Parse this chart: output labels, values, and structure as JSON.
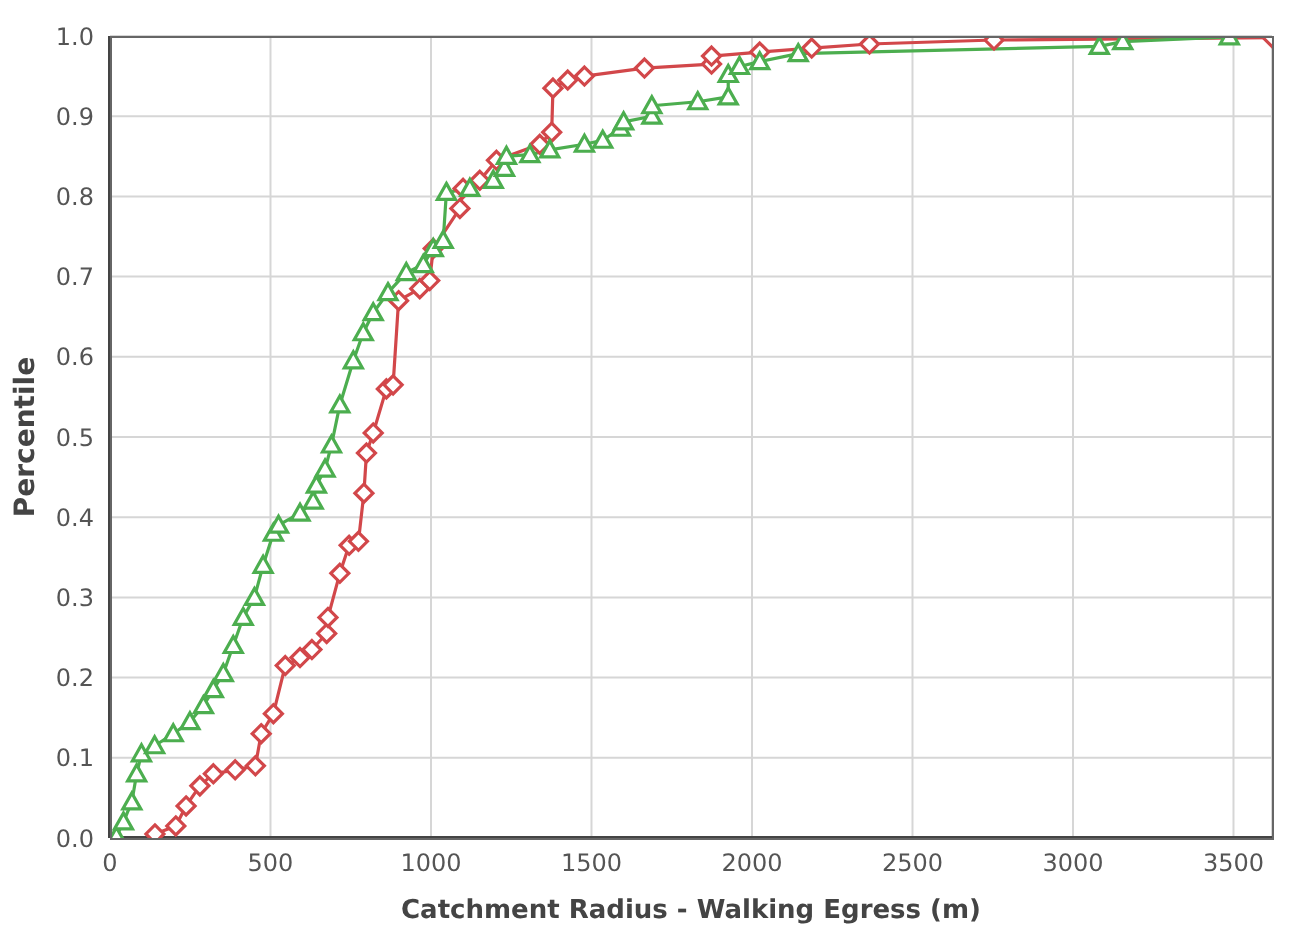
{
  "chart_data": {
    "type": "line",
    "xlabel": "Catchment Radius - Walking Egress (m)",
    "ylabel": "Percentile",
    "xlim": [
      0,
      3620
    ],
    "xticks": [
      0,
      500,
      1000,
      1500,
      2000,
      2500,
      3000,
      3500
    ],
    "ylim": [
      0,
      1
    ],
    "yticks": [
      {
        "value": 0,
        "label": "0.0"
      },
      {
        "value": 0.1,
        "label": "0.1"
      },
      {
        "value": 0.2,
        "label": "0.2"
      },
      {
        "value": 0.3,
        "label": "0.3"
      },
      {
        "value": 0.4,
        "label": "0.4"
      },
      {
        "value": 0.5,
        "label": "0.5"
      },
      {
        "value": 0.6,
        "label": "0.6"
      },
      {
        "value": 0.7,
        "label": "0.7"
      },
      {
        "value": 0.8,
        "label": "0.8"
      },
      {
        "value": 0.9,
        "label": "0.9"
      },
      {
        "value": 1,
        "label": "1.0"
      }
    ],
    "grid": true,
    "line_style": "solid",
    "series": [
      {
        "color": "#d2474a",
        "marker": "diamond",
        "x": [
          140,
          205,
          237,
          280,
          322,
          390,
          453,
          471,
          509,
          546,
          592,
          629,
          675,
          679,
          716,
          745,
          774,
          791,
          799,
          820,
          861,
          882,
          899,
          965,
          996,
          1007,
          1090,
          1100,
          1152,
          1204,
          1339,
          1376,
          1380,
          1426,
          1478,
          1665,
          1874,
          1874,
          2024,
          2186,
          2366,
          2754,
          3620
        ],
        "values": [
          0.005,
          0.015,
          0.04,
          0.065,
          0.08,
          0.085,
          0.09,
          0.13,
          0.155,
          0.215,
          0.225,
          0.235,
          0.255,
          0.275,
          0.33,
          0.365,
          0.37,
          0.43,
          0.48,
          0.505,
          0.56,
          0.565,
          0.67,
          0.685,
          0.695,
          0.735,
          0.785,
          0.81,
          0.82,
          0.845,
          0.865,
          0.88,
          0.935,
          0.945,
          0.95,
          0.96,
          0.965,
          0.975,
          0.98,
          0.985,
          0.99,
          0.995,
          0.998
        ]
      },
      {
        "color": "#4cae4f",
        "marker": "triangle",
        "x": [
          20,
          42,
          68,
          83,
          98,
          139,
          197,
          249,
          291,
          322,
          353,
          384,
          415,
          450,
          477,
          509,
          525,
          592,
          633,
          643,
          670,
          690,
          716,
          758,
          789,
          820,
          866,
          923,
          976,
          1007,
          1038,
          1048,
          1121,
          1194,
          1229,
          1235,
          1308,
          1370,
          1478,
          1535,
          1590,
          1600,
          1688,
          1688,
          1831,
          1926,
          1926,
          1961,
          2024,
          2144,
          3082,
          3155,
          3487
        ],
        "values": [
          0.002,
          0.02,
          0.045,
          0.08,
          0.105,
          0.115,
          0.13,
          0.145,
          0.165,
          0.185,
          0.205,
          0.24,
          0.275,
          0.3,
          0.34,
          0.38,
          0.39,
          0.405,
          0.42,
          0.44,
          0.46,
          0.49,
          0.54,
          0.595,
          0.63,
          0.655,
          0.68,
          0.705,
          0.715,
          0.735,
          0.745,
          0.805,
          0.81,
          0.82,
          0.835,
          0.85,
          0.852,
          0.858,
          0.865,
          0.87,
          0.885,
          0.893,
          0.9,
          0.913,
          0.918,
          0.924,
          0.952,
          0.962,
          0.968,
          0.978,
          0.987,
          0.993,
          0.999
        ]
      }
    ]
  }
}
